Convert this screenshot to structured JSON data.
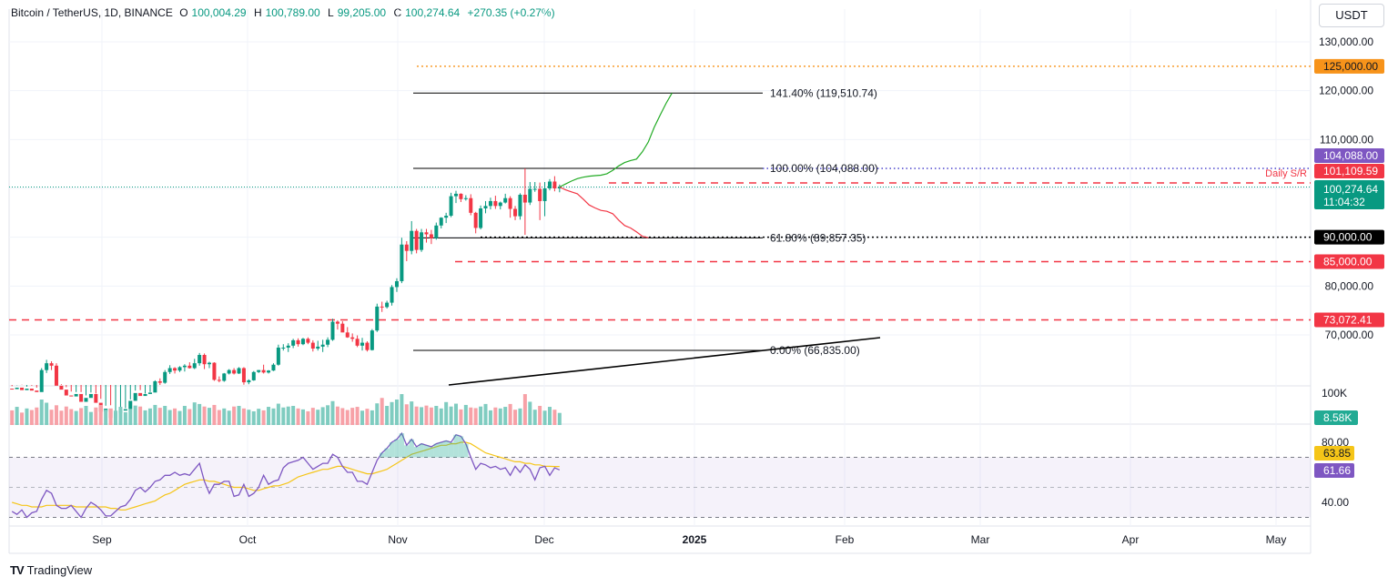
{
  "header": {
    "symbol": "Bitcoin / TetherUS, 1D, BINANCE",
    "open_label": "O",
    "open": "100,004.29",
    "high_label": "H",
    "high": "100,789.00",
    "low_label": "L",
    "low": "99,205.00",
    "close_label": "C",
    "close": "100,274.64",
    "change": "+270.35 (+0.27%)"
  },
  "currency_button": "USDT",
  "branding": {
    "logo": "TV",
    "text": "TradingView"
  },
  "chart_data": {
    "type": "candlestick",
    "price_axis": {
      "ticks": [
        70000,
        80000,
        90000,
        100000,
        110000,
        120000,
        130000
      ],
      "tick_labels": [
        "70,000.00",
        "80,000.00",
        "90,000.00",
        "100,000.00",
        "110,000.00",
        "120,000.00",
        "130,000.00"
      ]
    },
    "x_axis": {
      "labels": [
        "Sep",
        "Oct",
        "Nov",
        "Dec",
        "2025",
        "Feb",
        "Mar",
        "Apr",
        "May"
      ]
    },
    "price_tags": [
      {
        "text": "125,000.00",
        "color": "#f7931a",
        "text_color": "#131722",
        "price": 125000
      },
      {
        "text": "104,088.00",
        "color": "#7e57c2",
        "text_color": "#ffffff",
        "price": 104088
      },
      {
        "text": "101,109.59",
        "color": "#f23645",
        "text_color": "#ffffff",
        "price": 101109.59
      },
      {
        "text": "100,274.64",
        "color": "#089981",
        "text_color": "#ffffff",
        "price": 100274.64,
        "sub": "11:04:32"
      },
      {
        "text": "90,000.00",
        "color": "#000000",
        "text_color": "#ffffff",
        "price": 90000
      },
      {
        "text": "85,000.00",
        "color": "#f23645",
        "text_color": "#ffffff",
        "price": 85000
      },
      {
        "text": "73,072.41",
        "color": "#f23645",
        "text_color": "#ffffff",
        "price": 73072.41
      }
    ],
    "fib_levels": [
      {
        "label": "141.40% (119,510.74)",
        "price": 119510.74
      },
      {
        "label": "100.00% (104,088.00)",
        "price": 104088
      },
      {
        "label": "61.80% (89,857.35)",
        "price": 89857.35
      },
      {
        "label": "0.00% (66,835.00)",
        "price": 66835
      }
    ],
    "annotation": "Daily S/R",
    "candles": [
      [
        59000,
        59500,
        58300,
        58900
      ],
      [
        58900,
        59700,
        58200,
        59200
      ],
      [
        59200,
        59800,
        58700,
        58700
      ],
      [
        58700,
        59400,
        57900,
        59000
      ],
      [
        59000,
        59600,
        58400,
        58600
      ],
      [
        58600,
        59200,
        57700,
        58300
      ],
      [
        58300,
        63200,
        58000,
        62800
      ],
      [
        62800,
        64900,
        62200,
        64200
      ],
      [
        64200,
        64600,
        62800,
        63700
      ],
      [
        63700,
        64200,
        59300,
        59600
      ],
      [
        59600,
        59900,
        58500,
        58800
      ],
      [
        58800,
        59300,
        57300,
        57600
      ],
      [
        57600,
        58400,
        56700,
        57400
      ],
      [
        57400,
        58300,
        56300,
        57900
      ],
      [
        57900,
        58300,
        56000,
        56300
      ],
      [
        56300,
        57600,
        55600,
        57100
      ],
      [
        57100,
        58200,
        56500,
        57900
      ],
      [
        57900,
        58000,
        55600,
        56100
      ],
      [
        56100,
        56900,
        53800,
        54300
      ],
      [
        54300,
        55500,
        53200,
        54900
      ],
      [
        54900,
        55600,
        52600,
        53000
      ],
      [
        53000,
        54300,
        52200,
        54000
      ],
      [
        54000,
        54800,
        53200,
        54500
      ],
      [
        54500,
        55000,
        53900,
        54800
      ],
      [
        54800,
        56800,
        54500,
        56500
      ],
      [
        56500,
        58600,
        56000,
        58100
      ],
      [
        58100,
        58700,
        57200,
        57500
      ],
      [
        57500,
        58000,
        56200,
        57900
      ],
      [
        57900,
        58300,
        57200,
        58200
      ],
      [
        58200,
        60700,
        58000,
        60500
      ],
      [
        60500,
        61100,
        59200,
        60200
      ],
      [
        60200,
        62800,
        60000,
        62400
      ],
      [
        62400,
        63800,
        62000,
        63200
      ],
      [
        63200,
        63400,
        62100,
        62700
      ],
      [
        62700,
        63600,
        62400,
        63400
      ],
      [
        63400,
        64000,
        62500,
        63700
      ],
      [
        63700,
        64400,
        63100,
        63200
      ],
      [
        63200,
        65100,
        63000,
        64200
      ],
      [
        64200,
        66300,
        63700,
        65900
      ],
      [
        65900,
        66200,
        63000,
        64000
      ],
      [
        64000,
        64500,
        63200,
        64300
      ],
      [
        64300,
        64400,
        60600,
        60800
      ],
      [
        60800,
        61500,
        60300,
        60600
      ],
      [
        60600,
        62200,
        60400,
        62100
      ],
      [
        62100,
        63000,
        61900,
        62800
      ],
      [
        62800,
        63200,
        61900,
        62100
      ],
      [
        62100,
        63400,
        62000,
        63200
      ],
      [
        63200,
        63400,
        59800,
        60300
      ],
      [
        60300,
        60900,
        59900,
        60700
      ],
      [
        60700,
        62600,
        60600,
        62400
      ],
      [
        62400,
        62800,
        62200,
        62800
      ],
      [
        62800,
        63900,
        62100,
        62300
      ],
      [
        62300,
        62800,
        62100,
        62700
      ],
      [
        62700,
        64200,
        62600,
        63900
      ],
      [
        63900,
        68000,
        63700,
        67400
      ],
      [
        67400,
        68100,
        66800,
        67400
      ],
      [
        67400,
        68300,
        66500,
        67800
      ],
      [
        67800,
        69200,
        67300,
        68900
      ],
      [
        68900,
        69300,
        67600,
        68100
      ],
      [
        68100,
        69400,
        67900,
        69200
      ],
      [
        69200,
        69500,
        68100,
        68400
      ],
      [
        68400,
        68900,
        66600,
        67200
      ],
      [
        67200,
        68800,
        66800,
        67600
      ],
      [
        67600,
        69000,
        66500,
        68000
      ],
      [
        68000,
        69500,
        67500,
        69000
      ],
      [
        69000,
        73300,
        68800,
        72700
      ],
      [
        72700,
        73000,
        71100,
        72300
      ],
      [
        72300,
        72800,
        70700,
        70500
      ],
      [
        70500,
        71600,
        69400,
        69500
      ],
      [
        69500,
        70300,
        68600,
        69200
      ],
      [
        69200,
        69900,
        67500,
        67800
      ],
      [
        67800,
        69400,
        66800,
        68400
      ],
      [
        68400,
        68700,
        66600,
        66900
      ],
      [
        66900,
        71200,
        66800,
        70900
      ],
      [
        70900,
        76400,
        70600,
        75800
      ],
      [
        75800,
        76800,
        74700,
        75700
      ],
      [
        75700,
        77000,
        75400,
        76600
      ],
      [
        76600,
        80200,
        76000,
        79800
      ],
      [
        79800,
        81600,
        78800,
        81000
      ],
      [
        81000,
        89900,
        80600,
        88500
      ],
      [
        88500,
        89200,
        85100,
        87200
      ],
      [
        87200,
        93300,
        86500,
        91300
      ],
      [
        91300,
        91700,
        86700,
        87400
      ],
      [
        87400,
        91700,
        87000,
        91000
      ],
      [
        91000,
        91700,
        88900,
        90600
      ],
      [
        90600,
        91500,
        88600,
        89800
      ],
      [
        89800,
        93000,
        89500,
        92400
      ],
      [
        92400,
        94100,
        91800,
        94000
      ],
      [
        94000,
        95000,
        92900,
        94400
      ],
      [
        94400,
        99100,
        94100,
        98400
      ],
      [
        98400,
        99500,
        97000,
        98900
      ],
      [
        98900,
        99000,
        97200,
        97800
      ],
      [
        97800,
        98600,
        97500,
        98000
      ],
      [
        98000,
        98800,
        94500,
        95000
      ],
      [
        95000,
        95200,
        90800,
        91900
      ],
      [
        91900,
        96500,
        91600,
        95900
      ],
      [
        95900,
        97400,
        94900,
        96400
      ],
      [
        96400,
        98100,
        95700,
        97400
      ],
      [
        97400,
        98500,
        95800,
        96400
      ],
      [
        96400,
        97300,
        95700,
        97100
      ],
      [
        97100,
        98900,
        96900,
        98000
      ],
      [
        98000,
        98400,
        94000,
        95800
      ],
      [
        95800,
        96400,
        93500,
        94300
      ],
      [
        94300,
        99000,
        93600,
        98700
      ],
      [
        98700,
        104088,
        90500,
        97100
      ],
      [
        97100,
        101300,
        96600,
        99900
      ],
      [
        99900,
        101300,
        99300,
        99900
      ],
      [
        99900,
        101200,
        93500,
        97400
      ],
      [
        97400,
        101300,
        94300,
        100000
      ],
      [
        100000,
        101900,
        99600,
        101400
      ],
      [
        101400,
        102500,
        99400,
        100004
      ],
      [
        100004,
        100789,
        99205,
        100274.64
      ]
    ],
    "projection_up": [
      100274.64,
      100900,
      101500,
      102000,
      102300,
      102500,
      102600,
      102700,
      103000,
      103700,
      104600,
      105300,
      105700,
      106000,
      107500,
      109500,
      112500,
      115000,
      117400,
      119510
    ],
    "projection_down": [
      100274.64,
      99700,
      99300,
      98900,
      97800,
      96600,
      96000,
      95500,
      95300,
      94800,
      93500,
      92400,
      91900,
      91100,
      90200,
      89900
    ],
    "trendline": {
      "from_price": 57500,
      "to_price": 70000
    },
    "volume": {
      "label": "100K",
      "last_text": "8.58K",
      "values": [
        46,
        57,
        39,
        52,
        47,
        55,
        80,
        70,
        48,
        62,
        45,
        58,
        50,
        44,
        53,
        60,
        41,
        55,
        63,
        48,
        52,
        45,
        57,
        40,
        49,
        61,
        58,
        46,
        52,
        63,
        54,
        60,
        47,
        52,
        44,
        60,
        50,
        71,
        66,
        58,
        54,
        63,
        47,
        52,
        45,
        58,
        60,
        52,
        48,
        43,
        51,
        46,
        57,
        52,
        67,
        55,
        58,
        60,
        52,
        49,
        43,
        54,
        48,
        56,
        62,
        75,
        58,
        53,
        47,
        54,
        57,
        45,
        51,
        46,
        68,
        85,
        60,
        72,
        80,
        97,
        65,
        74,
        58,
        56,
        61,
        55,
        60,
        52,
        72,
        58,
        67,
        49,
        63,
        55,
        53,
        58,
        66,
        46,
        55,
        52,
        57,
        66,
        48,
        52,
        97,
        73,
        48,
        60,
        45,
        57,
        48,
        38
      ]
    },
    "rsi": {
      "ticks": [
        "80.00",
        "40.00"
      ],
      "rsi_value": "61.66",
      "ma_value": "63.85",
      "upper": 70,
      "lower": 30,
      "values": [
        34,
        32,
        35,
        30,
        33,
        34,
        42,
        48,
        46,
        38,
        36,
        36,
        38,
        34,
        30,
        36,
        40,
        38,
        35,
        31,
        31,
        34,
        37,
        38,
        42,
        48,
        50,
        47,
        50,
        54,
        55,
        58,
        58,
        60,
        58,
        59,
        58,
        62,
        66,
        54,
        46,
        52,
        52,
        54,
        54,
        44,
        45,
        52,
        44,
        46,
        50,
        58,
        52,
        54,
        55,
        63,
        66,
        67,
        68,
        70,
        66,
        62,
        64,
        66,
        66,
        72,
        70,
        64,
        60,
        60,
        54,
        54,
        52,
        60,
        68,
        73,
        76,
        80,
        82,
        86,
        78,
        82,
        77,
        79,
        78,
        77,
        79,
        80,
        81,
        80,
        85,
        84,
        79,
        70,
        62,
        66,
        65,
        63,
        64,
        62,
        63,
        58,
        64,
        60,
        65,
        62,
        55,
        63,
        64,
        58,
        63,
        61.66
      ],
      "ma": [
        40,
        39,
        38,
        38,
        37,
        37,
        37,
        38,
        38,
        38,
        38,
        38,
        38,
        37,
        37,
        37,
        37,
        37,
        37,
        37,
        36,
        36,
        35,
        35,
        36,
        37,
        38,
        39,
        40,
        41,
        43,
        45,
        46,
        48,
        50,
        52,
        53,
        54,
        55,
        55,
        54,
        54,
        53,
        52,
        51,
        50,
        50,
        50,
        49,
        48,
        48,
        49,
        50,
        51,
        51,
        52,
        53,
        55,
        57,
        58,
        59,
        60,
        61,
        62,
        62,
        63,
        64,
        64,
        63,
        62,
        61,
        60,
        59,
        59,
        60,
        61,
        62,
        64,
        66,
        68,
        70,
        72,
        73,
        74,
        75,
        76,
        77,
        78,
        78,
        79,
        79,
        80,
        80,
        79,
        77,
        75,
        73,
        72,
        71,
        70,
        69,
        68,
        67,
        67,
        66,
        66,
        65,
        65,
        64,
        64,
        63.9,
        63.85
      ]
    }
  }
}
